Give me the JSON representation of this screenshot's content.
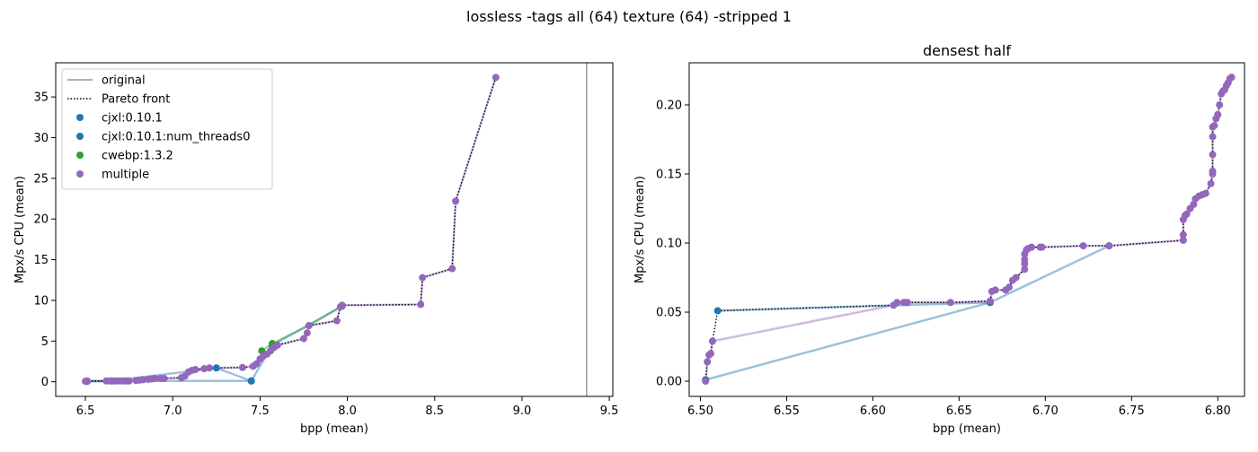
{
  "suptitle": "lossless -tags all (64) texture (64) -stripped 1",
  "colors": {
    "blue": "#1f77b4",
    "green": "#2ca02c",
    "purple": "#9467bd",
    "original_line": "#808080",
    "pareto": "#000000"
  },
  "chart_data": [
    {
      "type": "scatter",
      "title": "",
      "xlabel": "bpp (mean)",
      "ylabel": "Mpx/s CPU (mean)",
      "xlim": [
        6.33,
        9.52
      ],
      "ylim": [
        -1.8,
        39.2
      ],
      "xticks": [
        "6.5",
        "7.0",
        "7.5",
        "8.0",
        "8.5",
        "9.0",
        "9.5"
      ],
      "yticks": [
        "0",
        "5",
        "10",
        "15",
        "20",
        "25",
        "30",
        "35"
      ],
      "grid": false,
      "legend_position": "top-left",
      "legend": [
        {
          "label": "original",
          "kind": "line"
        },
        {
          "label": "Pareto front",
          "kind": "dotted"
        },
        {
          "label": "cjxl:0.10.1",
          "kind": "marker",
          "color": "#1f77b4"
        },
        {
          "label": "cjxl:0.10.1:num_threads0",
          "kind": "marker",
          "color": "#1f77b4"
        },
        {
          "label": "cwebp:1.3.2",
          "kind": "marker",
          "color": "#2ca02c"
        },
        {
          "label": "multiple",
          "kind": "marker",
          "color": "#9467bd"
        }
      ],
      "original_x": 9.37,
      "series": [
        {
          "name": "cjxl:0.10.1",
          "color": "#1f77b4",
          "x": [
            6.51,
            6.65,
            7.25,
            7.45
          ],
          "y": [
            0.05,
            0.1,
            1.7,
            0.1
          ]
        },
        {
          "name": "cjxl:0.10.1:num_threads0",
          "color": "#1f77b4",
          "x": [
            6.51,
            6.74,
            7.45,
            7.57,
            7.97
          ],
          "y": [
            0.05,
            0.1,
            0.1,
            4.5,
            9.3
          ]
        },
        {
          "name": "cwebp:1.3.2",
          "color": "#2ca02c",
          "x": [
            7.51,
            7.57,
            7.78,
            7.97
          ],
          "y": [
            3.8,
            4.7,
            6.9,
            9.3
          ]
        },
        {
          "name": "multiple",
          "color": "#9467bd",
          "x": [
            6.5,
            6.51,
            6.62,
            6.64,
            6.66,
            6.68,
            6.7,
            6.72,
            6.75,
            6.79,
            6.81,
            6.83,
            6.86,
            6.88,
            6.9,
            6.93,
            6.95,
            7.05,
            7.07,
            7.09,
            7.11,
            7.13,
            7.18,
            7.21,
            7.4,
            7.46,
            7.48,
            7.5,
            7.52,
            7.54,
            7.56,
            7.58,
            7.6,
            7.75,
            7.77,
            7.78,
            7.94,
            7.96,
            7.97,
            8.42,
            8.43,
            8.6,
            8.62,
            8.85
          ],
          "y": [
            0.05,
            0.1,
            0.1,
            0.1,
            0.1,
            0.1,
            0.1,
            0.1,
            0.1,
            0.15,
            0.2,
            0.25,
            0.3,
            0.35,
            0.4,
            0.4,
            0.4,
            0.5,
            0.7,
            1.2,
            1.4,
            1.5,
            1.6,
            1.7,
            1.75,
            1.9,
            2.2,
            2.8,
            3.2,
            3.4,
            3.8,
            4.2,
            4.5,
            5.3,
            6.0,
            6.9,
            7.5,
            9.2,
            9.4,
            9.5,
            12.8,
            13.9,
            22.2,
            37.4
          ]
        }
      ],
      "pareto_front": {
        "x": [
          6.5,
          6.51,
          6.62,
          6.66,
          6.7,
          6.75,
          6.79,
          6.83,
          6.88,
          6.95,
          7.05,
          7.07,
          7.09,
          7.11,
          7.13,
          7.18,
          7.25,
          7.4,
          7.46,
          7.48,
          7.5,
          7.52,
          7.54,
          7.56,
          7.58,
          7.6,
          7.75,
          7.77,
          7.78,
          7.94,
          7.96,
          7.97,
          8.42,
          8.43,
          8.6,
          8.62,
          8.85
        ],
        "y": [
          0.05,
          0.1,
          0.1,
          0.1,
          0.1,
          0.1,
          0.15,
          0.25,
          0.35,
          0.4,
          0.5,
          0.7,
          1.2,
          1.4,
          1.5,
          1.6,
          1.7,
          1.75,
          1.9,
          2.2,
          2.8,
          3.2,
          3.4,
          3.8,
          4.2,
          4.5,
          5.3,
          6.0,
          6.9,
          7.5,
          9.2,
          9.4,
          9.5,
          12.8,
          13.9,
          22.2,
          37.4
        ]
      }
    },
    {
      "type": "scatter",
      "title": "densest half",
      "xlabel": "bpp (mean)",
      "ylabel": "Mpx/s CPU (mean)",
      "xlim": [
        6.4935,
        6.8155
      ],
      "ylim": [
        -0.011,
        0.2305
      ],
      "xticks": [
        "6.50",
        "6.55",
        "6.60",
        "6.65",
        "6.70",
        "6.75",
        "6.80"
      ],
      "yticks": [
        "0.00",
        "0.05",
        "0.10",
        "0.15",
        "0.20"
      ],
      "grid": false,
      "series": [
        {
          "name": "cjxl:0.10.1",
          "color": "#1f77b4",
          "x": [
            6.51,
            6.668
          ],
          "y": [
            0.051,
            0.057
          ]
        },
        {
          "name": "cjxl:0.10.1:num_threads0",
          "color": "#1f77b4",
          "x": [
            6.503,
            6.668,
            6.737
          ],
          "y": [
            0.001,
            0.057,
            0.098
          ]
        },
        {
          "name": "multiple",
          "color": "#9467bd",
          "x": [
            6.503,
            6.504,
            6.505,
            6.506,
            6.507,
            6.612,
            6.614,
            6.618,
            6.62,
            6.645,
            6.668,
            6.669,
            6.671,
            6.677,
            6.679,
            6.681,
            6.683,
            6.688,
            6.688,
            6.688,
            6.688,
            6.689,
            6.69,
            6.692,
            6.697,
            6.698,
            6.722,
            6.737,
            6.78,
            6.78,
            6.78,
            6.781,
            6.782,
            6.784,
            6.786,
            6.787,
            6.789,
            6.791,
            6.793,
            6.796,
            6.797,
            6.797,
            6.797,
            6.797,
            6.797,
            6.798,
            6.799,
            6.8,
            6.801,
            6.802,
            6.803,
            6.804,
            6.805,
            6.806,
            6.807,
            6.808
          ],
          "y": [
            0.0,
            0.014,
            0.019,
            0.02,
            0.029,
            0.055,
            0.057,
            0.057,
            0.057,
            0.057,
            0.058,
            0.065,
            0.066,
            0.066,
            0.068,
            0.073,
            0.075,
            0.081,
            0.085,
            0.088,
            0.092,
            0.095,
            0.096,
            0.097,
            0.097,
            0.097,
            0.098,
            0.098,
            0.102,
            0.106,
            0.117,
            0.12,
            0.121,
            0.125,
            0.128,
            0.132,
            0.134,
            0.135,
            0.136,
            0.143,
            0.15,
            0.152,
            0.164,
            0.177,
            0.184,
            0.185,
            0.19,
            0.193,
            0.2,
            0.208,
            0.21,
            0.211,
            0.214,
            0.216,
            0.219,
            0.22
          ]
        }
      ],
      "pareto_front": {
        "x": [
          6.503,
          6.504,
          6.505,
          6.506,
          6.507,
          6.51,
          6.612,
          6.614,
          6.618,
          6.62,
          6.645,
          6.668,
          6.669,
          6.671,
          6.677,
          6.679,
          6.681,
          6.683,
          6.688,
          6.688,
          6.688,
          6.688,
          6.689,
          6.69,
          6.692,
          6.697,
          6.698,
          6.722,
          6.737,
          6.78,
          6.78,
          6.78,
          6.781,
          6.782,
          6.784,
          6.786,
          6.787,
          6.789,
          6.791,
          6.793,
          6.796,
          6.797,
          6.797,
          6.797,
          6.797,
          6.797,
          6.798,
          6.799,
          6.8,
          6.801,
          6.802,
          6.803,
          6.804,
          6.805,
          6.806,
          6.807,
          6.808
        ],
        "y": [
          0.0,
          0.014,
          0.019,
          0.02,
          0.029,
          0.051,
          0.055,
          0.057,
          0.057,
          0.057,
          0.057,
          0.058,
          0.065,
          0.066,
          0.066,
          0.068,
          0.073,
          0.075,
          0.081,
          0.085,
          0.088,
          0.092,
          0.095,
          0.096,
          0.097,
          0.097,
          0.097,
          0.098,
          0.098,
          0.102,
          0.106,
          0.117,
          0.12,
          0.121,
          0.125,
          0.128,
          0.132,
          0.134,
          0.135,
          0.136,
          0.143,
          0.15,
          0.152,
          0.164,
          0.177,
          0.184,
          0.185,
          0.19,
          0.193,
          0.2,
          0.208,
          0.21,
          0.211,
          0.214,
          0.216,
          0.219,
          0.22
        ]
      }
    }
  ]
}
